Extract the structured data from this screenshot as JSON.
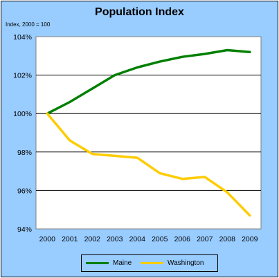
{
  "chart_data": {
    "type": "line",
    "title": "Population Index",
    "ylabel": "Index, 2000 = 100",
    "xlabel": "",
    "x": [
      "2000",
      "2001",
      "2002",
      "2003",
      "2004",
      "2005",
      "2006",
      "2007",
      "2008",
      "2009"
    ],
    "ylim": [
      94,
      104
    ],
    "yticks": [
      94,
      96,
      98,
      100,
      102,
      104
    ],
    "ytick_labels": [
      "94%",
      "96%",
      "98%",
      "100%",
      "102%",
      "104%"
    ],
    "grid": "horizontal",
    "legend_position": "bottom",
    "series": [
      {
        "name": "Maine",
        "color": "#008000",
        "values": [
          100,
          100.6,
          101.3,
          102.0,
          102.4,
          102.7,
          102.95,
          103.1,
          103.3,
          103.2
        ]
      },
      {
        "name": "Washington",
        "color": "#ffcc00",
        "values": [
          100,
          98.6,
          97.9,
          97.8,
          97.7,
          96.9,
          96.6,
          96.7,
          95.9,
          94.7
        ]
      }
    ]
  }
}
